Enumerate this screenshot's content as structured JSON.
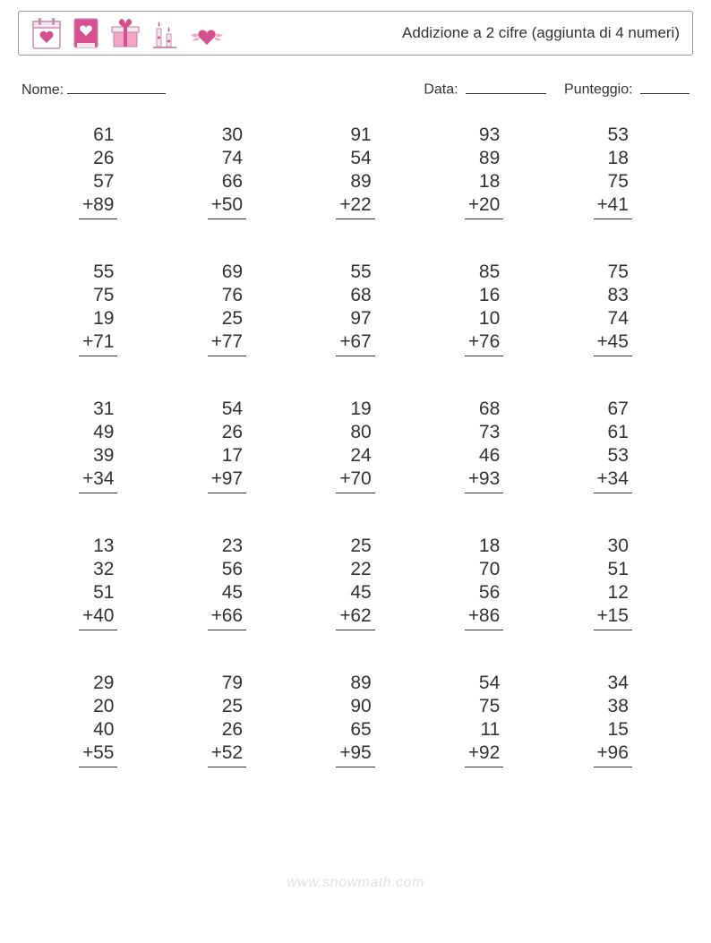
{
  "header": {
    "title": "Addizione a 2 cifre (aggiunta di 4 numeri)",
    "icon_colors": {
      "outline": "#c98fb3",
      "fill": "#d64f8f",
      "accent": "#f2a6c4",
      "light": "#f5e6ee"
    }
  },
  "meta": {
    "name_label": "Nome:",
    "date_label": "Data:",
    "score_label": "Punteggio:"
  },
  "problems": {
    "operator": "+",
    "rows": [
      [
        {
          "nums": [
            61,
            26,
            57,
            89
          ]
        },
        {
          "nums": [
            30,
            74,
            66,
            50
          ]
        },
        {
          "nums": [
            91,
            54,
            89,
            22
          ]
        },
        {
          "nums": [
            93,
            89,
            18,
            20
          ]
        },
        {
          "nums": [
            53,
            18,
            75,
            41
          ]
        }
      ],
      [
        {
          "nums": [
            55,
            75,
            19,
            71
          ]
        },
        {
          "nums": [
            69,
            76,
            25,
            77
          ]
        },
        {
          "nums": [
            55,
            68,
            97,
            67
          ]
        },
        {
          "nums": [
            85,
            16,
            10,
            76
          ]
        },
        {
          "nums": [
            75,
            83,
            74,
            45
          ]
        }
      ],
      [
        {
          "nums": [
            31,
            49,
            39,
            34
          ]
        },
        {
          "nums": [
            54,
            26,
            17,
            97
          ]
        },
        {
          "nums": [
            19,
            80,
            24,
            70
          ]
        },
        {
          "nums": [
            68,
            73,
            46,
            93
          ]
        },
        {
          "nums": [
            67,
            61,
            53,
            34
          ]
        }
      ],
      [
        {
          "nums": [
            13,
            32,
            51,
            40
          ]
        },
        {
          "nums": [
            23,
            56,
            45,
            66
          ]
        },
        {
          "nums": [
            25,
            22,
            45,
            62
          ]
        },
        {
          "nums": [
            18,
            70,
            56,
            86
          ]
        },
        {
          "nums": [
            30,
            51,
            12,
            15
          ]
        }
      ],
      [
        {
          "nums": [
            29,
            20,
            40,
            55
          ]
        },
        {
          "nums": [
            79,
            25,
            26,
            52
          ]
        },
        {
          "nums": [
            89,
            90,
            65,
            95
          ]
        },
        {
          "nums": [
            54,
            75,
            11,
            92
          ]
        },
        {
          "nums": [
            34,
            38,
            15,
            96
          ]
        }
      ]
    ]
  },
  "footer": {
    "text": "www.snowmath.com"
  }
}
